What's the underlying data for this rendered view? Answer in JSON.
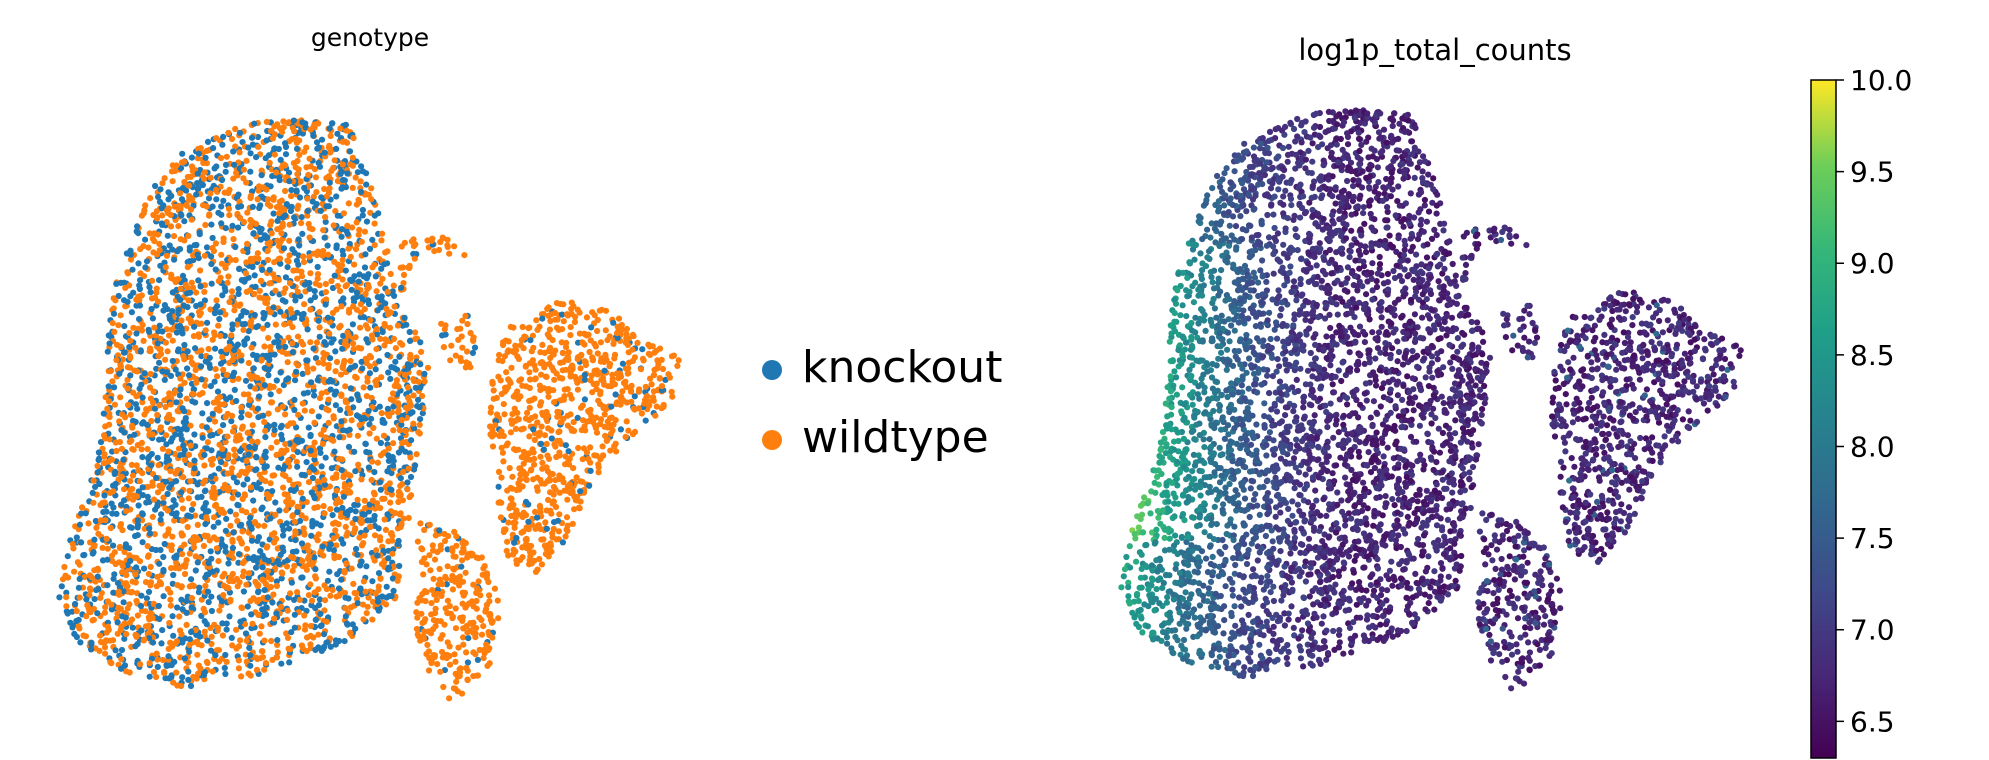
{
  "chart_data": [
    {
      "type": "scatter",
      "title": "genotype",
      "xlabel": "",
      "ylabel": "",
      "axes_visible": false,
      "legend_position": "right",
      "series": [
        {
          "name": "knockout",
          "color": "#1f77b4"
        },
        {
          "name": "wildtype",
          "color": "#ff7f0e"
        }
      ],
      "clusters": [
        {
          "region": "large-left-mass",
          "x": [
            0.0,
            0.55
          ],
          "y": [
            0.0,
            1.0
          ],
          "knockout_fraction": 0.45
        },
        {
          "region": "upper-middle-arm",
          "x": [
            0.55,
            0.68
          ],
          "y": [
            0.66,
            0.78
          ],
          "knockout_fraction": 0.15
        },
        {
          "region": "right-lobe",
          "x": [
            0.7,
            1.0
          ],
          "y": [
            0.25,
            0.72
          ],
          "knockout_fraction": 0.1
        },
        {
          "region": "bottom-middle-blob",
          "x": [
            0.55,
            0.7
          ],
          "y": [
            0.0,
            0.25
          ],
          "knockout_fraction": 0.05
        }
      ]
    },
    {
      "type": "scatter",
      "title": "log1p_total_counts",
      "xlabel": "",
      "ylabel": "",
      "axes_visible": false,
      "colorbar": {
        "colormap": "viridis",
        "range": [
          6.3,
          10.0
        ],
        "ticks": [
          "6.5",
          "7.0",
          "7.5",
          "8.0",
          "8.5",
          "9.0",
          "9.5",
          "10.0"
        ],
        "tick_values": [
          6.5,
          7.0,
          7.5,
          8.0,
          8.5,
          9.0,
          9.5,
          10.0
        ]
      },
      "value_pattern": "highest (~9.5) along the left edge of the large mass, decreasing to ~6.5 toward the right; most cells 6.4–7.2"
    }
  ]
}
